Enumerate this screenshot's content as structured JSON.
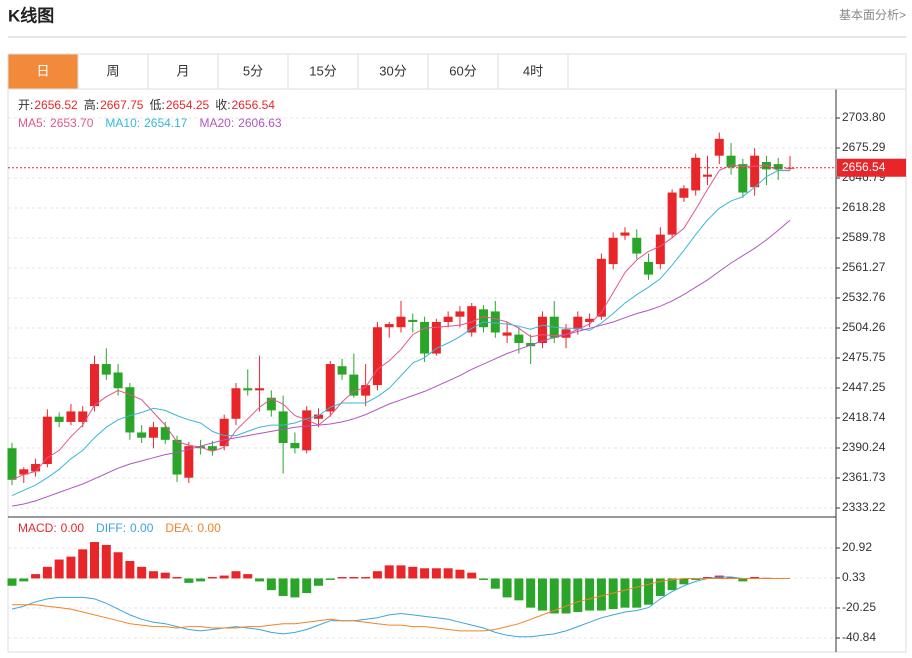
{
  "header": {
    "title": "K线图",
    "link": "基本面分析>"
  },
  "tabs": [
    "日",
    "周",
    "月",
    "5分",
    "15分",
    "30分",
    "60分",
    "4时"
  ],
  "active_tab": 0,
  "chart_data": [
    {
      "type": "candlestick",
      "up_color": "#e8262a",
      "down_color": "#2aa52a",
      "readout": [
        {
          "label": "开:",
          "value": "2656.52"
        },
        {
          "label": "高:",
          "value": "2667.75"
        },
        {
          "label": "低:",
          "value": "2654.25"
        },
        {
          "label": "收:",
          "value": "2656.54"
        }
      ],
      "last_price": 2656.54,
      "ylim": [
        2324.67,
        2730.41
      ],
      "yticks": [
        {
          "value": 2703.8,
          "label": "2703.80"
        },
        2675.29,
        2646.79,
        2618.28,
        2589.78,
        2561.27,
        2532.76,
        2504.26,
        2475.75,
        2447.25,
        2418.74,
        2390.24,
        2361.73,
        2333.22
      ],
      "grid": true,
      "ohlc": [
        [
          2390,
          2395,
          2355,
          2360
        ],
        [
          2365,
          2372,
          2357,
          2370
        ],
        [
          2368,
          2380,
          2363,
          2375
        ],
        [
          2375,
          2427,
          2372,
          2420
        ],
        [
          2420,
          2424,
          2410,
          2415
        ],
        [
          2415,
          2432,
          2412,
          2425
        ],
        [
          2415,
          2430,
          2410,
          2425
        ],
        [
          2430,
          2478,
          2425,
          2470
        ],
        [
          2470,
          2485,
          2455,
          2460
        ],
        [
          2462,
          2470,
          2440,
          2447
        ],
        [
          2448,
          2452,
          2398,
          2405
        ],
        [
          2405,
          2412,
          2395,
          2400
        ],
        [
          2400,
          2415,
          2390,
          2410
        ],
        [
          2410,
          2415,
          2394,
          2398
        ],
        [
          2398,
          2402,
          2358,
          2365
        ],
        [
          2362,
          2396,
          2357,
          2392
        ],
        [
          2392,
          2398,
          2384,
          2390
        ],
        [
          2392,
          2397,
          2383,
          2388
        ],
        [
          2392,
          2422,
          2388,
          2418
        ],
        [
          2418,
          2452,
          2412,
          2447
        ],
        [
          2447,
          2465,
          2440,
          2445
        ],
        [
          2445,
          2478,
          2425,
          2447
        ],
        [
          2438,
          2445,
          2420,
          2426
        ],
        [
          2425,
          2440,
          2366,
          2395
        ],
        [
          2395,
          2405,
          2385,
          2390
        ],
        [
          2388,
          2430,
          2385,
          2426
        ],
        [
          2418,
          2428,
          2410,
          2422
        ],
        [
          2425,
          2473,
          2420,
          2470
        ],
        [
          2468,
          2475,
          2455,
          2460
        ],
        [
          2460,
          2480,
          2438,
          2440
        ],
        [
          2440,
          2470,
          2430,
          2450
        ],
        [
          2450,
          2510,
          2445,
          2505
        ],
        [
          2505,
          2510,
          2495,
          2508
        ],
        [
          2505,
          2530,
          2500,
          2515
        ],
        [
          2512,
          2518,
          2500,
          2510
        ],
        [
          2510,
          2515,
          2472,
          2480
        ],
        [
          2480,
          2513,
          2478,
          2510
        ],
        [
          2510,
          2520,
          2505,
          2515
        ],
        [
          2515,
          2525,
          2505,
          2520
        ],
        [
          2500,
          2528,
          2496,
          2525
        ],
        [
          2522,
          2526,
          2500,
          2505
        ],
        [
          2520,
          2530,
          2495,
          2500
        ],
        [
          2497,
          2510,
          2490,
          2500
        ],
        [
          2498,
          2505,
          2480,
          2490
        ],
        [
          2490,
          2498,
          2470,
          2487
        ],
        [
          2490,
          2520,
          2485,
          2515
        ],
        [
          2515,
          2530,
          2490,
          2495
        ],
        [
          2495,
          2508,
          2485,
          2503
        ],
        [
          2503,
          2520,
          2498,
          2515
        ],
        [
          2510,
          2518,
          2505,
          2513
        ],
        [
          2515,
          2575,
          2512,
          2570
        ],
        [
          2565,
          2595,
          2560,
          2590
        ],
        [
          2592,
          2600,
          2588,
          2595
        ],
        [
          2590,
          2598,
          2570,
          2575
        ],
        [
          2567,
          2575,
          2550,
          2555
        ],
        [
          2565,
          2600,
          2560,
          2593
        ],
        [
          2593,
          2636,
          2590,
          2633
        ],
        [
          2628,
          2640,
          2624,
          2637
        ],
        [
          2635,
          2670,
          2630,
          2666
        ],
        [
          2648,
          2668,
          2640,
          2650
        ],
        [
          2668,
          2690,
          2660,
          2684
        ],
        [
          2668,
          2680,
          2650,
          2657
        ],
        [
          2660,
          2665,
          2628,
          2633
        ],
        [
          2638,
          2675,
          2630,
          2668
        ],
        [
          2662,
          2668,
          2640,
          2655
        ],
        [
          2660,
          2666,
          2645,
          2655
        ],
        [
          2656.52,
          2667.75,
          2654.25,
          2656.54
        ]
      ],
      "series": [
        {
          "name": "MA5:",
          "last_label": "2653.70",
          "color": "#e2568a",
          "values": [
            2360,
            2365,
            2368,
            2381,
            2388,
            2401,
            2412,
            2431,
            2439,
            2445,
            2441,
            2436,
            2424,
            2412,
            2396,
            2393,
            2391,
            2387,
            2391,
            2407,
            2418,
            2429,
            2437,
            2432,
            2421,
            2417,
            2412,
            2421,
            2434,
            2444,
            2448,
            2465,
            2473,
            2484,
            2498,
            2504,
            2505,
            2506,
            2507,
            2510,
            2515,
            2513,
            2510,
            2504,
            2496,
            2498,
            2497,
            2498,
            2503,
            2508,
            2519,
            2538,
            2557,
            2569,
            2577,
            2582,
            2590,
            2599,
            2617,
            2636,
            2654,
            2659,
            2658,
            2658,
            2659,
            2654,
            2653.7
          ]
        },
        {
          "name": "MA10:",
          "last_label": "2654.17",
          "color": "#3ab6d8",
          "values": [
            2345,
            2350,
            2355,
            2362,
            2370,
            2380,
            2388,
            2400,
            2410,
            2417,
            2421,
            2424,
            2428,
            2426,
            2421,
            2417,
            2414,
            2406,
            2402,
            2402,
            2406,
            2410,
            2412,
            2412,
            2414,
            2418,
            2421,
            2429,
            2433,
            2433,
            2433,
            2439,
            2447,
            2459,
            2471,
            2476,
            2485,
            2490,
            2496,
            2504,
            2510,
            2509,
            2508,
            2506,
            2503,
            2507,
            2505,
            2504,
            2504,
            2502,
            2509,
            2518,
            2528,
            2536,
            2543,
            2551,
            2564,
            2578,
            2593,
            2607,
            2618,
            2625,
            2629,
            2638,
            2648,
            2654,
            2654.17
          ]
        },
        {
          "name": "MA20:",
          "last_label": "2606.63",
          "color": "#b056c0",
          "values": [
            2335,
            2337,
            2340,
            2344,
            2348,
            2352,
            2356,
            2361,
            2366,
            2371,
            2375,
            2378,
            2381,
            2384,
            2386,
            2389,
            2392,
            2395,
            2398,
            2400,
            2402,
            2404,
            2406,
            2408,
            2410,
            2411,
            2412,
            2413,
            2415,
            2418,
            2422,
            2427,
            2432,
            2436,
            2440,
            2444,
            2449,
            2454,
            2459,
            2465,
            2470,
            2475,
            2480,
            2484,
            2488,
            2492,
            2495,
            2498,
            2501,
            2504,
            2507,
            2510,
            2514,
            2518,
            2521,
            2525,
            2530,
            2536,
            2543,
            2550,
            2558,
            2566,
            2573,
            2580,
            2588,
            2597,
            2606.63
          ]
        }
      ]
    },
    {
      "type": "macd",
      "up_color": "#e8262a",
      "down_color": "#2aa52a",
      "ylim": [
        -50.45,
        40.82
      ],
      "yticks": [
        20.92,
        0.33,
        -20.25,
        -40.84
      ],
      "grid": true,
      "bars": {
        "name": "MACD:",
        "last_label": "0.00",
        "color": "#e8262a",
        "values": [
          -5,
          -2,
          3,
          8,
          13,
          15,
          20,
          25,
          23,
          18,
          12,
          8,
          5,
          4,
          1,
          -3,
          -2,
          1,
          2,
          5,
          3,
          -2,
          -8,
          -12,
          -13,
          -10,
          -5,
          -1,
          1,
          1,
          1,
          5,
          9,
          9,
          8,
          7,
          7,
          7,
          6,
          4,
          -1,
          -7,
          -13,
          -15,
          -20,
          -22,
          -24,
          -24,
          -23,
          -22,
          -22,
          -21,
          -20,
          -20,
          -18,
          -12,
          -8,
          -4,
          -1,
          1,
          2,
          1,
          -2,
          1,
          0.5,
          0.2,
          0
        ]
      },
      "series": [
        {
          "name": "DIFF:",
          "last_label": "0.00",
          "color": "#3aa6dd",
          "values": [
            -21,
            -19,
            -16,
            -14,
            -13,
            -13,
            -13,
            -14,
            -17,
            -21,
            -25,
            -28,
            -30,
            -31,
            -33,
            -35,
            -36,
            -35,
            -34,
            -33,
            -34,
            -35,
            -37,
            -38,
            -37,
            -35,
            -32,
            -29,
            -29,
            -29,
            -28,
            -27,
            -25,
            -24,
            -25,
            -26,
            -27,
            -28,
            -30,
            -32,
            -34,
            -37,
            -39,
            -40,
            -40,
            -39,
            -38,
            -36,
            -33,
            -30,
            -27,
            -25,
            -23,
            -22,
            -20,
            -14,
            -9,
            -5,
            -2,
            0,
            1,
            1,
            0,
            0,
            0,
            0,
            0
          ]
        },
        {
          "name": "DEA:",
          "last_label": "0.00",
          "color": "#f08428",
          "values": [
            -18,
            -18,
            -18,
            -19,
            -20,
            -21,
            -23,
            -25,
            -27,
            -29,
            -31,
            -32,
            -33,
            -33,
            -34,
            -33,
            -33,
            -34,
            -34,
            -34,
            -33,
            -33,
            -32,
            -31,
            -31,
            -30,
            -29,
            -28,
            -29,
            -29,
            -30,
            -31,
            -32,
            -32,
            -33,
            -33,
            -34,
            -35,
            -36,
            -36,
            -36,
            -35,
            -33,
            -31,
            -28,
            -25,
            -22,
            -19,
            -16,
            -14,
            -12,
            -10,
            -8,
            -6,
            -4,
            -2,
            -1,
            0,
            0,
            0,
            0,
            0,
            0,
            0,
            0,
            0,
            0
          ]
        }
      ]
    }
  ]
}
